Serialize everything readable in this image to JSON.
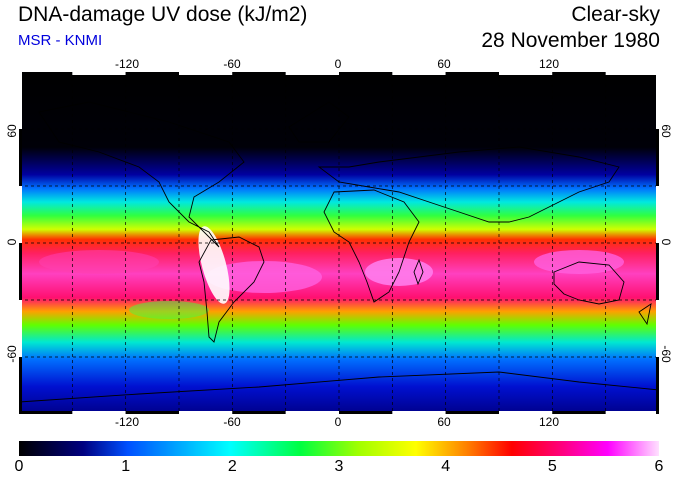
{
  "header": {
    "title": "DNA-damage UV dose (kJ/m2)",
    "source": "MSR - KNMI",
    "condition": "Clear-sky",
    "date": "28 November 1980"
  },
  "map": {
    "lon_ticks": [
      "-120",
      "-60",
      "0",
      "60",
      "120"
    ],
    "lat_ticks": [
      "60",
      "0",
      "-60"
    ],
    "grid_lon_values": [
      -150,
      -120,
      -90,
      -60,
      -30,
      0,
      30,
      60,
      90,
      120,
      150
    ],
    "grid_lat_values": [
      60,
      30,
      0,
      -30,
      -60
    ],
    "lon_range": [
      -180,
      180
    ],
    "lat_range": [
      -90,
      90
    ]
  },
  "colorbar": {
    "ticks": [
      "0",
      "1",
      "2",
      "3",
      "4",
      "5",
      "6"
    ],
    "range": [
      0,
      6
    ],
    "colors": [
      "#000000",
      "#0000a0",
      "#0060ff",
      "#00e0ff",
      "#00ff60",
      "#a0ff00",
      "#ffff00",
      "#ff8000",
      "#ff0000",
      "#ff0080",
      "#ff00ff",
      "#ffb0ff",
      "#ffffff"
    ]
  },
  "colors": {
    "subtitle": "#0000dd",
    "coast": "#000000",
    "grid": "#000000"
  }
}
